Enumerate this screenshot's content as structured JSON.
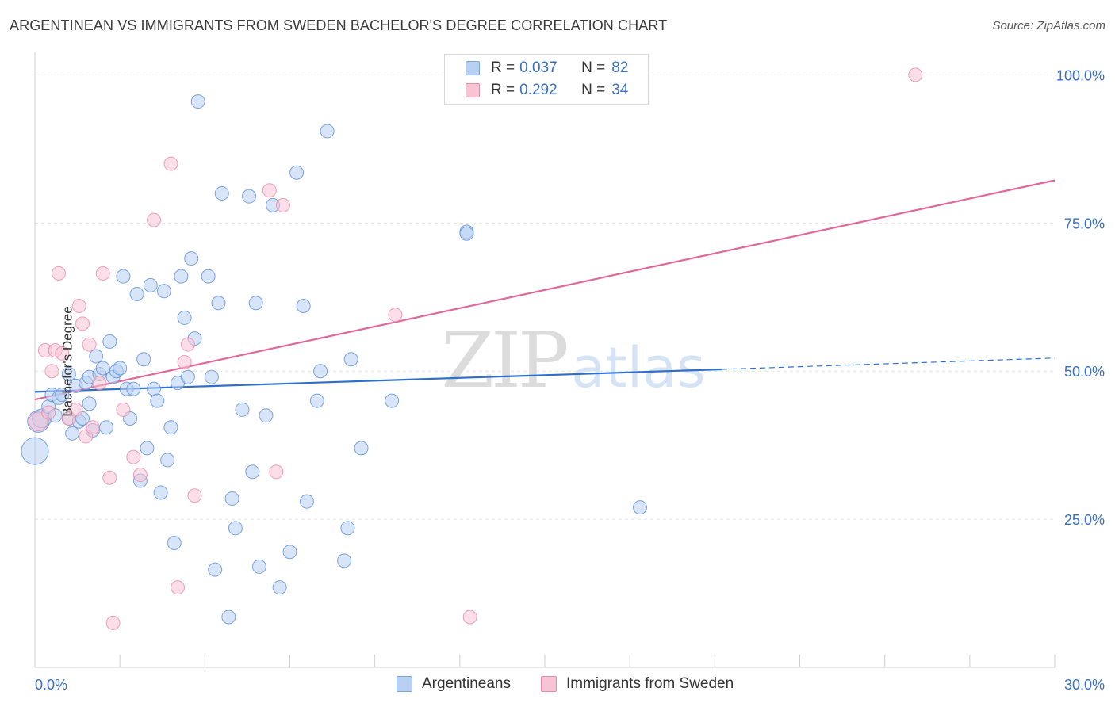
{
  "title": "ARGENTINEAN VS IMMIGRANTS FROM SWEDEN BACHELOR'S DEGREE CORRELATION CHART",
  "source": "Source: ZipAtlas.com",
  "watermark": {
    "zip": "ZIP",
    "atlas": "atlas"
  },
  "legend": {
    "r_label": "R =",
    "n_label": "N =",
    "rows": [
      {
        "r": "0.037",
        "n": "82",
        "fill": "#b8d0f2",
        "stroke": "#7aa6e0"
      },
      {
        "r": "0.292",
        "n": "34",
        "fill": "#f8c3d3",
        "stroke": "#e98aaa"
      }
    ]
  },
  "bottom_legend": [
    {
      "label": "Argentineans",
      "fill": "#b8d0f2",
      "stroke": "#7aa6e0"
    },
    {
      "label": "Immigrants from Sweden",
      "fill": "#f8c3d3",
      "stroke": "#e98aaa"
    }
  ],
  "chart_data": {
    "type": "scatter",
    "title": "ARGENTINEAN VS IMMIGRANTS FROM SWEDEN BACHELOR'S DEGREE CORRELATION CHART",
    "ylabel": "Bachelor's Degree",
    "xlabel": "",
    "xlim": [
      0,
      30
    ],
    "ylim": [
      0,
      103
    ],
    "x_tick_labels": [
      "0.0%",
      "30.0%"
    ],
    "y_ticks": [
      25,
      50,
      75,
      100
    ],
    "y_tick_labels": [
      "25.0%",
      "50.0%",
      "75.0%",
      "100.0%"
    ],
    "grid": true,
    "legend_position": "top-center",
    "series": [
      {
        "name": "Argentineans",
        "color": "#5b8fd6",
        "fill": "#b8d0f2",
        "trend": {
          "x0": 0,
          "y0": 46.5,
          "x1": 20.2,
          "y1": 50.3,
          "dashed_to_x": 30,
          "dashed_to_y": 52.2,
          "color": "#2e6fcc"
        },
        "points": [
          [
            0,
            36.5,
            20
          ],
          [
            0.1,
            41.5,
            16
          ],
          [
            0.2,
            42,
            14
          ],
          [
            0.4,
            44,
            10
          ],
          [
            0.5,
            46,
            10
          ],
          [
            0.6,
            42.5,
            10
          ],
          [
            0.7,
            45.5,
            10
          ],
          [
            0.8,
            46,
            10
          ],
          [
            1.0,
            42,
            10
          ],
          [
            1.0,
            49.5,
            10
          ],
          [
            1.1,
            39.5,
            10
          ],
          [
            1.2,
            47.5,
            10
          ],
          [
            1.3,
            41.5,
            10
          ],
          [
            1.4,
            42,
            10
          ],
          [
            1.5,
            48,
            10
          ],
          [
            1.6,
            44.5,
            10
          ],
          [
            1.6,
            49,
            10
          ],
          [
            1.7,
            40,
            10
          ],
          [
            1.8,
            52.5,
            10
          ],
          [
            1.9,
            49.5,
            10
          ],
          [
            2.0,
            50.5,
            10
          ],
          [
            2.1,
            40.5,
            10
          ],
          [
            2.2,
            55,
            10
          ],
          [
            2.3,
            49,
            10
          ],
          [
            2.4,
            50,
            10
          ],
          [
            2.5,
            50.5,
            10
          ],
          [
            2.6,
            66,
            10
          ],
          [
            2.7,
            47,
            10
          ],
          [
            2.8,
            42,
            10
          ],
          [
            2.9,
            47,
            10
          ],
          [
            3.0,
            63,
            10
          ],
          [
            3.1,
            31.5,
            10
          ],
          [
            3.2,
            52,
            10
          ],
          [
            3.3,
            37,
            10
          ],
          [
            3.4,
            64.5,
            10
          ],
          [
            3.5,
            47,
            10
          ],
          [
            3.6,
            45,
            10
          ],
          [
            3.7,
            29.5,
            10
          ],
          [
            3.8,
            63.5,
            10
          ],
          [
            3.9,
            35,
            10
          ],
          [
            4.0,
            40.5,
            10
          ],
          [
            4.1,
            21,
            10
          ],
          [
            4.2,
            48,
            10
          ],
          [
            4.3,
            66,
            10
          ],
          [
            4.4,
            59,
            10
          ],
          [
            4.5,
            49,
            10
          ],
          [
            4.6,
            69,
            10
          ],
          [
            4.7,
            55.5,
            10
          ],
          [
            4.8,
            95.5,
            10
          ],
          [
            5.1,
            66,
            10
          ],
          [
            5.2,
            49,
            10
          ],
          [
            5.3,
            16.5,
            10
          ],
          [
            5.4,
            61.5,
            10
          ],
          [
            5.5,
            80,
            10
          ],
          [
            5.7,
            8.5,
            10
          ],
          [
            5.8,
            28.5,
            10
          ],
          [
            5.9,
            23.5,
            10
          ],
          [
            6.1,
            43.5,
            10
          ],
          [
            6.3,
            79.5,
            10
          ],
          [
            6.4,
            33,
            10
          ],
          [
            6.5,
            61.5,
            10
          ],
          [
            6.6,
            17,
            10
          ],
          [
            6.8,
            42.5,
            10
          ],
          [
            7.0,
            78,
            10
          ],
          [
            7.2,
            13.5,
            10
          ],
          [
            7.5,
            19.5,
            10
          ],
          [
            7.7,
            83.5,
            10
          ],
          [
            7.9,
            61,
            10
          ],
          [
            8.0,
            28,
            10
          ],
          [
            8.3,
            45,
            10
          ],
          [
            8.4,
            50,
            10
          ],
          [
            8.6,
            90.5,
            10
          ],
          [
            9.1,
            18,
            10
          ],
          [
            9.2,
            23.5,
            10
          ],
          [
            9.3,
            52,
            10
          ],
          [
            9.6,
            37,
            10
          ],
          [
            10.5,
            45,
            10
          ],
          [
            12.7,
            73.5,
            10
          ],
          [
            12.7,
            73.2,
            10
          ],
          [
            17.8,
            27,
            10
          ]
        ]
      },
      {
        "name": "Immigrants from Sweden",
        "color": "#e98aaa",
        "fill": "#f8c3d3",
        "trend": {
          "x0": 0,
          "y0": 45.2,
          "x1": 30,
          "y1": 82.2,
          "color": "#e0689a"
        },
        "points": [
          [
            0.1,
            41.5,
            14
          ],
          [
            0.3,
            53.5,
            10
          ],
          [
            0.4,
            43,
            10
          ],
          [
            0.5,
            50,
            10
          ],
          [
            0.6,
            53.5,
            10
          ],
          [
            0.7,
            66.5,
            10
          ],
          [
            0.8,
            53,
            10
          ],
          [
            1.0,
            42,
            10
          ],
          [
            1.2,
            43.5,
            10
          ],
          [
            1.3,
            61,
            10
          ],
          [
            1.4,
            58,
            10
          ],
          [
            1.5,
            39,
            10
          ],
          [
            1.6,
            54.5,
            10
          ],
          [
            1.7,
            40.5,
            10
          ],
          [
            1.9,
            48,
            10
          ],
          [
            2.0,
            66.5,
            10
          ],
          [
            2.2,
            32,
            10
          ],
          [
            2.3,
            7.5,
            10
          ],
          [
            2.6,
            43.5,
            10
          ],
          [
            2.9,
            35.5,
            10
          ],
          [
            3.1,
            32.5,
            10
          ],
          [
            3.5,
            75.5,
            10
          ],
          [
            4.0,
            85,
            10
          ],
          [
            4.2,
            13.5,
            10
          ],
          [
            4.4,
            51.5,
            10
          ],
          [
            4.5,
            54.5,
            10
          ],
          [
            4.7,
            29,
            10
          ],
          [
            6.9,
            80.5,
            10
          ],
          [
            7.1,
            33,
            10
          ],
          [
            7.3,
            78,
            10
          ],
          [
            10.6,
            59.5,
            10
          ],
          [
            12.8,
            8.5,
            10
          ],
          [
            25.9,
            100,
            10
          ]
        ]
      }
    ]
  }
}
